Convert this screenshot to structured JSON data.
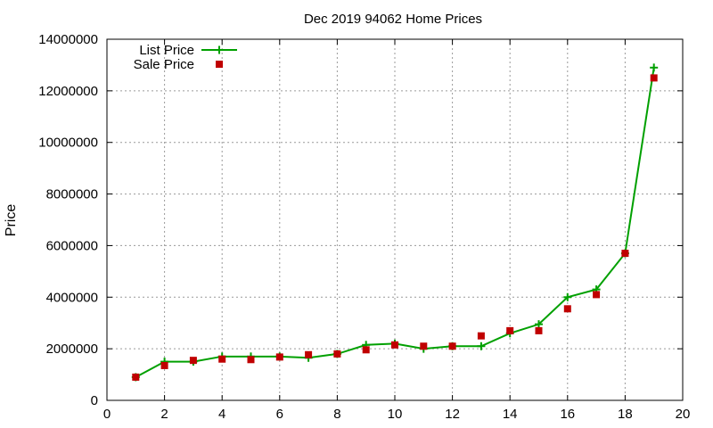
{
  "chart_data": {
    "type": "line",
    "title": "Dec 2019 94062 Home Prices",
    "xlabel": "",
    "ylabel": "Price",
    "xlim": [
      0,
      20
    ],
    "ylim": [
      0,
      14000000
    ],
    "x_ticks": [
      0,
      2,
      4,
      6,
      8,
      10,
      12,
      14,
      16,
      18,
      20
    ],
    "y_ticks": [
      0,
      2000000,
      4000000,
      6000000,
      8000000,
      10000000,
      12000000,
      14000000
    ],
    "grid": true,
    "legend_position": "top-left",
    "series": [
      {
        "name": "List Price",
        "color": "#00a000",
        "style": "line-with-plus-markers",
        "x": [
          1,
          2,
          3,
          4,
          5,
          6,
          7,
          8,
          9,
          10,
          11,
          12,
          13,
          14,
          15,
          16,
          17,
          18,
          19
        ],
        "y": [
          900000,
          1500000,
          1500000,
          1700000,
          1700000,
          1700000,
          1650000,
          1800000,
          2150000,
          2200000,
          2000000,
          2100000,
          2100000,
          2600000,
          2950000,
          4000000,
          4300000,
          5700000,
          12900000
        ]
      },
      {
        "name": "Sale Price",
        "color": "#c00000",
        "style": "square-markers",
        "x": [
          1,
          2,
          3,
          4,
          5,
          6,
          7,
          8,
          9,
          10,
          11,
          12,
          13,
          14,
          15,
          16,
          17,
          18,
          19
        ],
        "y": [
          900000,
          1350000,
          1550000,
          1600000,
          1580000,
          1680000,
          1770000,
          1800000,
          1960000,
          2150000,
          2100000,
          2100000,
          2500000,
          2700000,
          2700000,
          3550000,
          4100000,
          5700000,
          12500000
        ]
      }
    ]
  }
}
